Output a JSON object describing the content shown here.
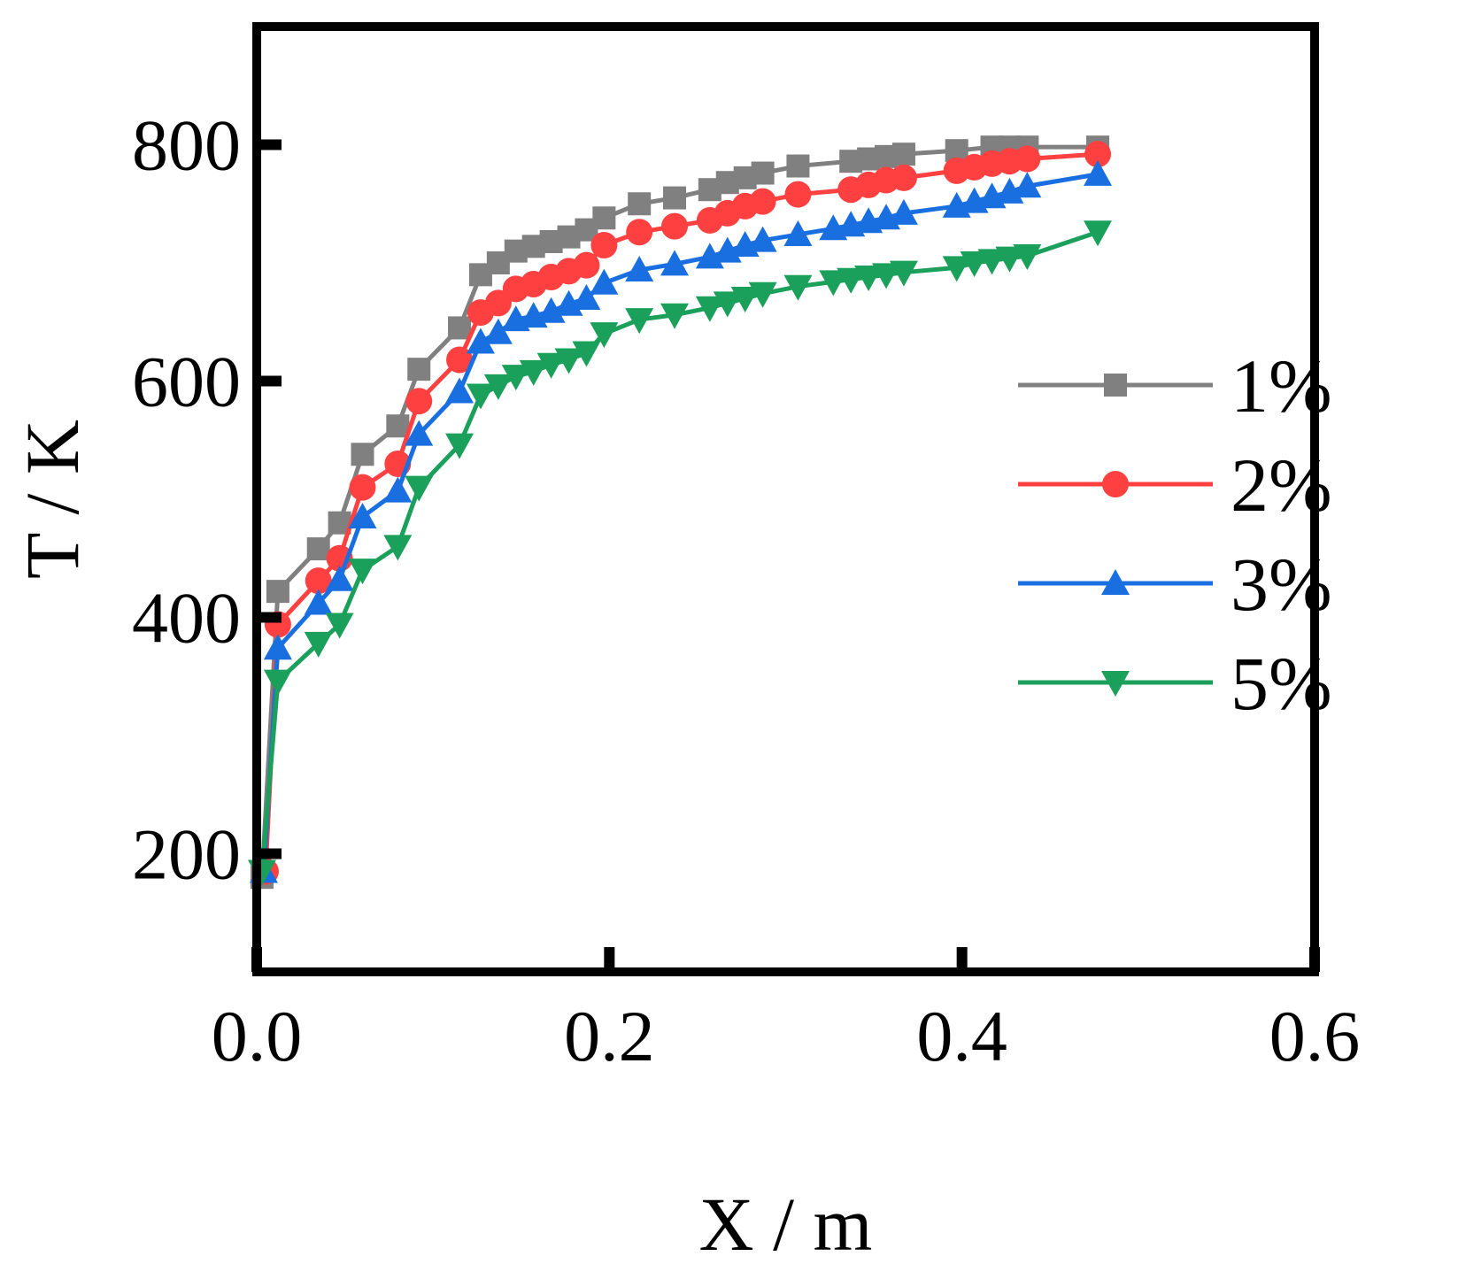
{
  "chart_data": {
    "type": "line",
    "title": "",
    "xlabel": "X / m",
    "ylabel": "T / K",
    "xlim": [
      0.0,
      0.6
    ],
    "ylim": [
      100,
      900
    ],
    "xticks": [
      0.0,
      0.2,
      0.4,
      0.6
    ],
    "xtick_labels": [
      "0.0",
      "0.2",
      "0.4",
      "0.6"
    ],
    "yticks": [
      200,
      400,
      600,
      800
    ],
    "ytick_labels": [
      "200",
      "400",
      "600",
      "800"
    ],
    "grid": false,
    "legend_position": "right",
    "series": [
      {
        "name": "1%",
        "color": "#808080",
        "marker": "square",
        "x": [
          0.003,
          0.012,
          0.035,
          0.047,
          0.06,
          0.08,
          0.092,
          0.115,
          0.127,
          0.137,
          0.147,
          0.157,
          0.167,
          0.177,
          0.187,
          0.197,
          0.217,
          0.237,
          0.257,
          0.267,
          0.277,
          0.287,
          0.307,
          0.337,
          0.347,
          0.357,
          0.367,
          0.397,
          0.417,
          0.427,
          0.437,
          0.477
        ],
        "y": [
          180,
          422,
          458,
          480,
          538,
          562,
          610,
          645,
          690,
          700,
          710,
          714,
          718,
          722,
          728,
          738,
          750,
          755,
          762,
          768,
          772,
          776,
          782,
          786,
          788,
          790,
          792,
          795,
          798,
          798,
          798,
          798
        ]
      },
      {
        "name": "2%",
        "color": "#ff4040",
        "marker": "circle",
        "x": [
          0.005,
          0.012,
          0.035,
          0.047,
          0.06,
          0.08,
          0.092,
          0.115,
          0.127,
          0.137,
          0.147,
          0.157,
          0.167,
          0.177,
          0.187,
          0.197,
          0.217,
          0.237,
          0.257,
          0.267,
          0.277,
          0.287,
          0.307,
          0.337,
          0.347,
          0.357,
          0.367,
          0.397,
          0.407,
          0.417,
          0.427,
          0.437,
          0.477
        ],
        "y": [
          185,
          394,
          431,
          450,
          510,
          530,
          583,
          618,
          658,
          666,
          678,
          682,
          688,
          693,
          698,
          715,
          726,
          731,
          736,
          742,
          748,
          752,
          758,
          762,
          766,
          770,
          772,
          778,
          781,
          784,
          786,
          788,
          792
        ]
      },
      {
        "name": "3%",
        "color": "#1a6fe0",
        "marker": "triangle-up",
        "x": [
          0.004,
          0.012,
          0.035,
          0.047,
          0.06,
          0.08,
          0.092,
          0.115,
          0.127,
          0.137,
          0.147,
          0.157,
          0.167,
          0.177,
          0.187,
          0.197,
          0.217,
          0.237,
          0.257,
          0.267,
          0.277,
          0.287,
          0.307,
          0.327,
          0.337,
          0.347,
          0.357,
          0.367,
          0.397,
          0.407,
          0.417,
          0.427,
          0.437,
          0.477
        ],
        "y": [
          185,
          374,
          412,
          432,
          485,
          507,
          555,
          591,
          633,
          641,
          652,
          655,
          659,
          665,
          670,
          683,
          694,
          699,
          705,
          710,
          715,
          719,
          724,
          729,
          732,
          735,
          738,
          742,
          748,
          752,
          756,
          760,
          765,
          775
        ]
      },
      {
        "name": "5%",
        "color": "#1aa05a",
        "marker": "triangle-down",
        "x": [
          0.003,
          0.012,
          0.035,
          0.047,
          0.06,
          0.08,
          0.092,
          0.115,
          0.127,
          0.137,
          0.147,
          0.157,
          0.167,
          0.177,
          0.187,
          0.197,
          0.217,
          0.237,
          0.257,
          0.267,
          0.277,
          0.287,
          0.307,
          0.327,
          0.337,
          0.347,
          0.357,
          0.367,
          0.397,
          0.407,
          0.417,
          0.427,
          0.437,
          0.477
        ],
        "y": [
          185,
          346,
          378,
          394,
          440,
          460,
          510,
          546,
          588,
          596,
          604,
          608,
          614,
          618,
          624,
          640,
          652,
          656,
          662,
          666,
          670,
          674,
          680,
          684,
          686,
          688,
          690,
          692,
          696,
          700,
          702,
          704,
          706,
          726
        ]
      }
    ]
  }
}
